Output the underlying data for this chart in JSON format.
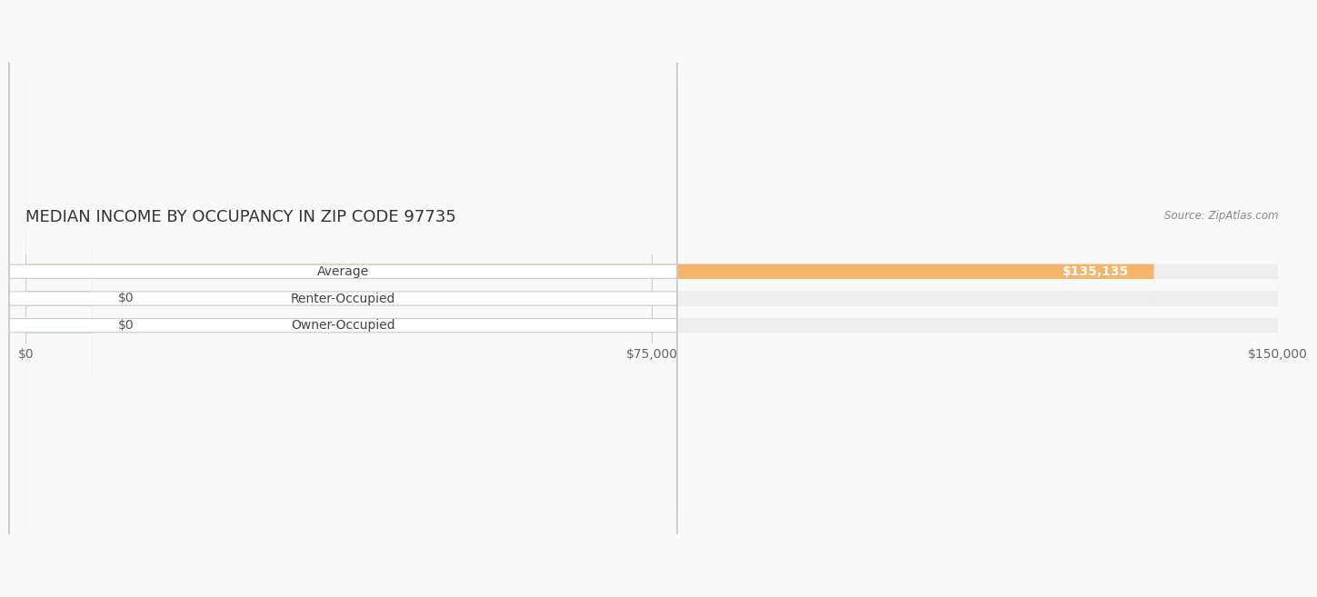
{
  "title": "MEDIAN INCOME BY OCCUPANCY IN ZIP CODE 97735",
  "source": "Source: ZipAtlas.com",
  "categories": [
    "Owner-Occupied",
    "Renter-Occupied",
    "Average"
  ],
  "values": [
    0,
    0,
    135135
  ],
  "bar_colors": [
    "#7dcfcf",
    "#c9a8d4",
    "#f5b469"
  ],
  "bar_bg_color": "#eeeeee",
  "label_bg_color": "#ffffff",
  "xlim": [
    0,
    150000
  ],
  "xticks": [
    0,
    75000,
    150000
  ],
  "xtick_labels": [
    "$0",
    "$75,000",
    "$150,000"
  ],
  "value_labels": [
    "$0",
    "$0",
    "$135,135"
  ],
  "title_fontsize": 13,
  "tick_fontsize": 10,
  "label_fontsize": 10,
  "annotation_fontsize": 10,
  "background_color": "#f9f9f9",
  "bar_height": 0.55,
  "min_bar_width": 8000
}
